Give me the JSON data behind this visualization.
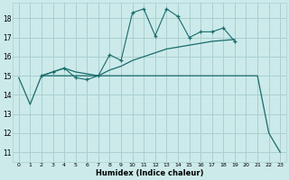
{
  "xlabel": "Humidex (Indice chaleur)",
  "bg_color": "#cceaea",
  "grid_color": "#aacfcf",
  "line_color": "#1a6b6b",
  "xlim": [
    -0.5,
    23.5
  ],
  "ylim": [
    10.5,
    18.8
  ],
  "yticks": [
    11,
    12,
    13,
    14,
    15,
    16,
    17,
    18
  ],
  "xticks": [
    0,
    1,
    2,
    3,
    4,
    5,
    6,
    7,
    8,
    9,
    10,
    11,
    12,
    13,
    14,
    15,
    16,
    17,
    18,
    19,
    20,
    21,
    22,
    23
  ],
  "series1_x": [
    0,
    1,
    2,
    3,
    4,
    5,
    6,
    7,
    8,
    9,
    10,
    11,
    12,
    13,
    14,
    15,
    16,
    17,
    18,
    19,
    20,
    21,
    22,
    23
  ],
  "series1_y": [
    14.9,
    13.5,
    15.0,
    15.0,
    15.0,
    15.0,
    15.0,
    15.0,
    15.0,
    15.0,
    15.0,
    15.0,
    15.0,
    15.0,
    15.0,
    15.0,
    15.0,
    15.0,
    15.0,
    15.0,
    15.0,
    15.0,
    12.0,
    11.0
  ],
  "series2_x": [
    2,
    3,
    4,
    5,
    6,
    7,
    8,
    9,
    10,
    11,
    12,
    13,
    14,
    15,
    16,
    17,
    18,
    19
  ],
  "series2_y": [
    15.0,
    15.2,
    15.4,
    15.2,
    15.1,
    15.0,
    15.3,
    15.5,
    15.8,
    16.0,
    16.2,
    16.4,
    16.5,
    16.6,
    16.7,
    16.8,
    16.85,
    16.9
  ],
  "series3_x": [
    2,
    3,
    4,
    5,
    6,
    7,
    8,
    9,
    10,
    11,
    12,
    13,
    14,
    15,
    16,
    17,
    18,
    19
  ],
  "series3_y": [
    15.0,
    15.2,
    15.4,
    14.9,
    14.8,
    15.0,
    16.1,
    15.8,
    18.3,
    18.5,
    17.1,
    18.5,
    18.1,
    17.0,
    17.3,
    17.3,
    17.5,
    16.8
  ],
  "series3_markers_x": [
    2,
    3,
    4,
    5,
    6,
    7,
    8,
    9,
    10,
    11,
    12,
    13,
    14,
    15,
    16,
    17,
    18,
    19
  ],
  "series3_markers_y": [
    15.0,
    15.2,
    15.4,
    14.9,
    14.8,
    15.0,
    16.1,
    15.8,
    18.3,
    18.5,
    17.1,
    18.5,
    18.1,
    17.0,
    17.3,
    17.3,
    17.5,
    16.8
  ]
}
